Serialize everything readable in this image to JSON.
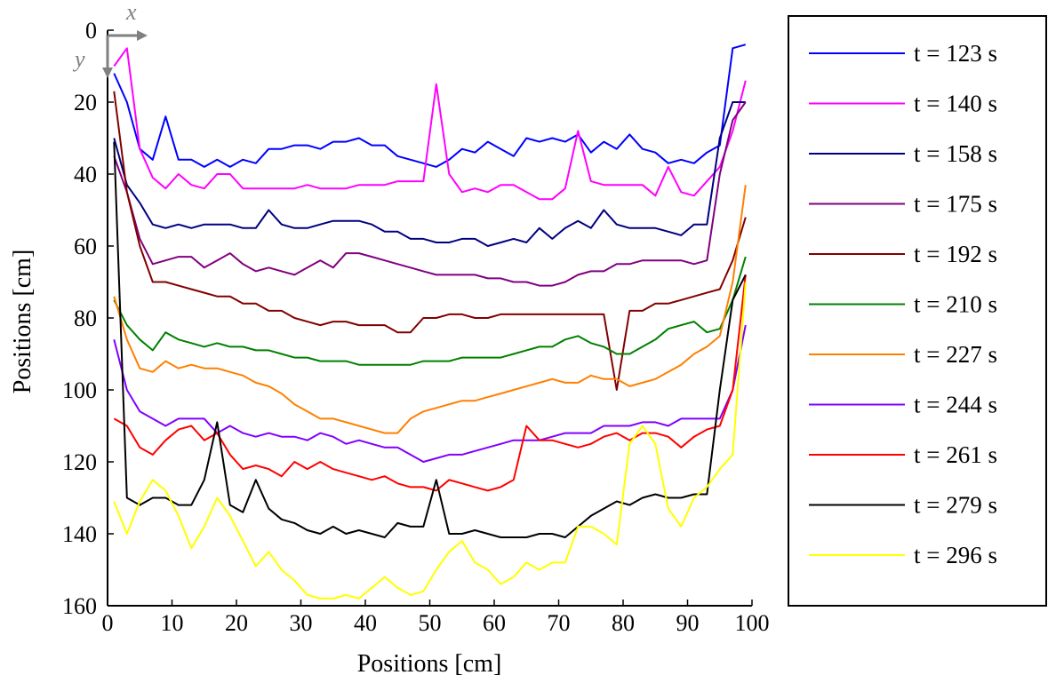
{
  "chart_data": {
    "type": "line",
    "xlabel": "Positions [cm]",
    "ylabel": "Positions [cm]",
    "xlim": [
      0,
      100
    ],
    "ylim": [
      0,
      160
    ],
    "y_inverted": true,
    "grid": false,
    "legend_position": "right",
    "x_ticks": [
      "0",
      "10",
      "20",
      "30",
      "40",
      "50",
      "60",
      "70",
      "80",
      "90",
      "100"
    ],
    "y_ticks": [
      "0",
      "20",
      "40",
      "60",
      "80",
      "100",
      "120",
      "140",
      "160"
    ],
    "axis_arrows": {
      "x_label": "x",
      "y_label": "y",
      "color": "#808080"
    },
    "x": [
      1,
      3,
      5,
      7,
      9,
      11,
      13,
      15,
      17,
      19,
      21,
      23,
      25,
      27,
      29,
      31,
      33,
      35,
      37,
      39,
      41,
      43,
      45,
      47,
      49,
      51,
      53,
      55,
      57,
      59,
      61,
      63,
      65,
      67,
      69,
      71,
      73,
      75,
      77,
      79,
      81,
      83,
      85,
      87,
      89,
      91,
      93,
      95,
      97,
      99
    ],
    "series": [
      {
        "name": "t = 123 s",
        "color": "#0000ff",
        "values": [
          12,
          20,
          33,
          36,
          24,
          36,
          36,
          38,
          36,
          38,
          36,
          37,
          33,
          33,
          32,
          32,
          33,
          31,
          31,
          30,
          32,
          32,
          35,
          36,
          37,
          38,
          36,
          33,
          34,
          31,
          33,
          35,
          30,
          31,
          30,
          31,
          29,
          34,
          31,
          33,
          29,
          33,
          34,
          37,
          36,
          37,
          34,
          32,
          5,
          4
        ]
      },
      {
        "name": "t = 140 s",
        "color": "#ff00ff",
        "values": [
          10,
          5,
          33,
          41,
          44,
          40,
          43,
          44,
          40,
          40,
          44,
          44,
          44,
          44,
          44,
          43,
          44,
          44,
          44,
          43,
          43,
          43,
          42,
          42,
          42,
          15,
          40,
          45,
          44,
          45,
          43,
          43,
          45,
          47,
          47,
          44,
          28,
          42,
          43,
          43,
          43,
          43,
          46,
          38,
          45,
          46,
          42,
          38,
          28,
          14
        ]
      },
      {
        "name": "t = 158 s",
        "color": "#000080",
        "values": [
          30,
          43,
          48,
          54,
          55,
          54,
          55,
          54,
          54,
          54,
          55,
          55,
          50,
          54,
          55,
          55,
          54,
          53,
          53,
          53,
          54,
          56,
          56,
          58,
          58,
          59,
          59,
          58,
          58,
          60,
          59,
          58,
          59,
          55,
          58,
          55,
          53,
          55,
          50,
          54,
          55,
          55,
          55,
          56,
          57,
          54,
          54,
          30,
          20,
          20
        ]
      },
      {
        "name": "t = 175 s",
        "color": "#800080",
        "values": [
          35,
          45,
          58,
          65,
          64,
          63,
          63,
          66,
          64,
          62,
          65,
          67,
          66,
          67,
          68,
          66,
          64,
          66,
          62,
          62,
          63,
          64,
          65,
          66,
          67,
          68,
          68,
          68,
          68,
          69,
          69,
          70,
          70,
          71,
          71,
          70,
          68,
          67,
          67,
          65,
          65,
          64,
          64,
          64,
          64,
          65,
          64,
          40,
          25,
          20
        ]
      },
      {
        "name": "t = 192 s",
        "color": "#800000",
        "values": [
          17,
          45,
          60,
          70,
          70,
          71,
          72,
          73,
          74,
          74,
          76,
          76,
          78,
          78,
          80,
          81,
          82,
          81,
          81,
          82,
          82,
          82,
          84,
          84,
          80,
          80,
          79,
          79,
          80,
          80,
          79,
          79,
          79,
          79,
          79,
          79,
          79,
          79,
          79,
          100,
          78,
          78,
          76,
          76,
          75,
          74,
          73,
          72,
          64,
          52
        ]
      },
      {
        "name": "t = 210 s",
        "color": "#008000",
        "values": [
          75,
          82,
          86,
          89,
          84,
          86,
          87,
          88,
          87,
          88,
          88,
          89,
          89,
          90,
          91,
          91,
          92,
          92,
          92,
          93,
          93,
          93,
          93,
          93,
          92,
          92,
          92,
          91,
          91,
          91,
          91,
          90,
          89,
          88,
          88,
          86,
          85,
          87,
          88,
          90,
          90,
          88,
          86,
          83,
          82,
          81,
          84,
          83,
          75,
          63
        ]
      },
      {
        "name": "t = 227 s",
        "color": "#ff8000",
        "values": [
          74,
          86,
          94,
          95,
          92,
          94,
          93,
          94,
          94,
          95,
          96,
          98,
          99,
          101,
          104,
          106,
          108,
          108,
          109,
          110,
          111,
          112,
          112,
          108,
          106,
          105,
          104,
          103,
          103,
          102,
          101,
          100,
          99,
          98,
          97,
          98,
          98,
          96,
          97,
          97,
          99,
          98,
          97,
          95,
          93,
          90,
          88,
          85,
          70,
          43
        ]
      },
      {
        "name": "t = 244 s",
        "color": "#8000ff",
        "values": [
          86,
          100,
          106,
          108,
          110,
          108,
          108,
          108,
          112,
          110,
          112,
          113,
          112,
          113,
          113,
          114,
          112,
          113,
          115,
          114,
          115,
          116,
          116,
          118,
          120,
          119,
          118,
          118,
          117,
          116,
          115,
          114,
          114,
          114,
          113,
          112,
          112,
          112,
          110,
          110,
          110,
          109,
          109,
          110,
          108,
          108,
          108,
          108,
          100,
          82
        ]
      },
      {
        "name": "t = 261 s",
        "color": "#ff0000",
        "values": [
          108,
          110,
          116,
          118,
          114,
          111,
          110,
          114,
          112,
          118,
          122,
          121,
          122,
          124,
          120,
          122,
          120,
          122,
          123,
          124,
          125,
          124,
          126,
          127,
          127,
          128,
          125,
          126,
          127,
          128,
          127,
          125,
          110,
          114,
          114,
          115,
          116,
          115,
          113,
          112,
          114,
          112,
          112,
          113,
          116,
          113,
          111,
          110,
          100,
          68
        ]
      },
      {
        "name": "t = 279 s",
        "color": "#000000",
        "values": [
          31,
          130,
          132,
          130,
          130,
          132,
          132,
          125,
          109,
          132,
          134,
          125,
          133,
          136,
          137,
          139,
          140,
          138,
          140,
          139,
          140,
          141,
          137,
          138,
          138,
          125,
          140,
          140,
          139,
          140,
          141,
          141,
          141,
          140,
          140,
          141,
          138,
          135,
          133,
          131,
          132,
          130,
          129,
          130,
          130,
          129,
          129,
          100,
          75,
          68
        ]
      },
      {
        "name": "t = 296 s",
        "color": "#ffff00",
        "values": [
          131,
          140,
          131,
          125,
          128,
          135,
          144,
          138,
          130,
          135,
          142,
          149,
          145,
          150,
          153,
          157,
          158,
          158,
          157,
          158,
          155,
          152,
          155,
          157,
          156,
          150,
          145,
          142,
          148,
          150,
          154,
          152,
          148,
          150,
          148,
          148,
          138,
          138,
          140,
          143,
          115,
          110,
          115,
          133,
          138,
          130,
          127,
          122,
          118,
          70
        ]
      }
    ]
  }
}
